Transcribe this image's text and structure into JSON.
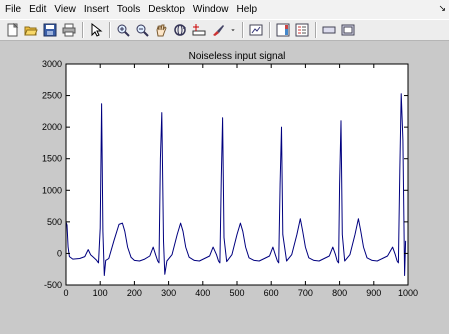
{
  "menu": {
    "items": [
      {
        "label": "File"
      },
      {
        "label": "Edit"
      },
      {
        "label": "View"
      },
      {
        "label": "Insert"
      },
      {
        "label": "Tools"
      },
      {
        "label": "Desktop"
      },
      {
        "label": "Window"
      },
      {
        "label": "Help"
      }
    ],
    "pin_glyph": "↘"
  },
  "toolbar": {
    "icons": [
      "new-figure-icon",
      "open-file-icon",
      "save-icon",
      "print-icon",
      "edit-plot-icon",
      "zoom-in-icon",
      "zoom-out-icon",
      "pan-icon",
      "rotate-3d-icon",
      "data-cursor-icon",
      "brush-icon",
      "brush-dropdown-icon",
      "link-plot-icon",
      "colorbar-icon",
      "legend-icon",
      "hide-plot-tools-icon",
      "show-plot-tools-icon"
    ]
  },
  "chart_data": {
    "type": "line",
    "title": "Noiseless input signal",
    "xlabel": "",
    "ylabel": "",
    "xlim": [
      0,
      1000
    ],
    "ylim": [
      -500,
      3000
    ],
    "xticks": [
      "0",
      "100",
      "200",
      "300",
      "400",
      "500",
      "600",
      "700",
      "800",
      "900",
      "1000"
    ],
    "yticks": [
      "-500",
      "0",
      "500",
      "1000",
      "1500",
      "2000",
      "2500",
      "3000"
    ],
    "grid": false,
    "series": [
      {
        "color": "#00007f",
        "x": [
          0,
          3,
          6,
          10,
          20,
          40,
          55,
          65,
          72,
          80,
          88,
          95,
          100,
          104,
          108,
          112,
          116,
          125,
          140,
          155,
          165,
          172,
          180,
          190,
          200,
          215,
          230,
          245,
          255,
          262,
          268,
          272,
          276,
          280,
          285,
          289,
          295,
          310,
          325,
          335,
          342,
          350,
          360,
          375,
          390,
          405,
          420,
          430,
          440,
          446,
          450,
          454,
          458,
          462,
          470,
          485,
          500,
          510,
          517,
          525,
          535,
          550,
          565,
          580,
          595,
          605,
          612,
          618,
          622,
          626,
          630,
          634,
          645,
          660,
          675,
          685,
          692,
          700,
          710,
          725,
          740,
          755,
          770,
          780,
          788,
          793,
          797,
          800,
          804,
          808,
          815,
          830,
          845,
          855,
          862,
          870,
          880,
          895,
          910,
          925,
          940,
          955,
          963,
          968,
          972,
          976,
          980,
          985,
          990,
          993
        ],
        "y": [
          500,
          450,
          100,
          -50,
          -90,
          -80,
          -50,
          60,
          -20,
          -60,
          -100,
          -150,
          400,
          2370,
          350,
          -350,
          -110,
          -80,
          200,
          460,
          480,
          350,
          100,
          -60,
          -110,
          -120,
          -90,
          -40,
          100,
          -20,
          -120,
          -150,
          1500,
          2230,
          200,
          -330,
          -120,
          -20,
          300,
          480,
          350,
          100,
          -60,
          -110,
          -120,
          -80,
          -40,
          100,
          -20,
          -120,
          -150,
          1200,
          2150,
          250,
          -130,
          -20,
          300,
          480,
          350,
          100,
          -70,
          -110,
          -120,
          -80,
          -40,
          100,
          -20,
          -120,
          -150,
          1100,
          2000,
          300,
          -120,
          -20,
          300,
          550,
          350,
          100,
          -70,
          -110,
          -120,
          -80,
          -40,
          100,
          -20,
          -120,
          -150,
          1100,
          2100,
          300,
          -120,
          -20,
          300,
          550,
          350,
          100,
          -70,
          -110,
          -120,
          -80,
          -40,
          100,
          -20,
          -120,
          -150,
          1300,
          2530,
          1800,
          -350,
          200
        ]
      }
    ]
  }
}
